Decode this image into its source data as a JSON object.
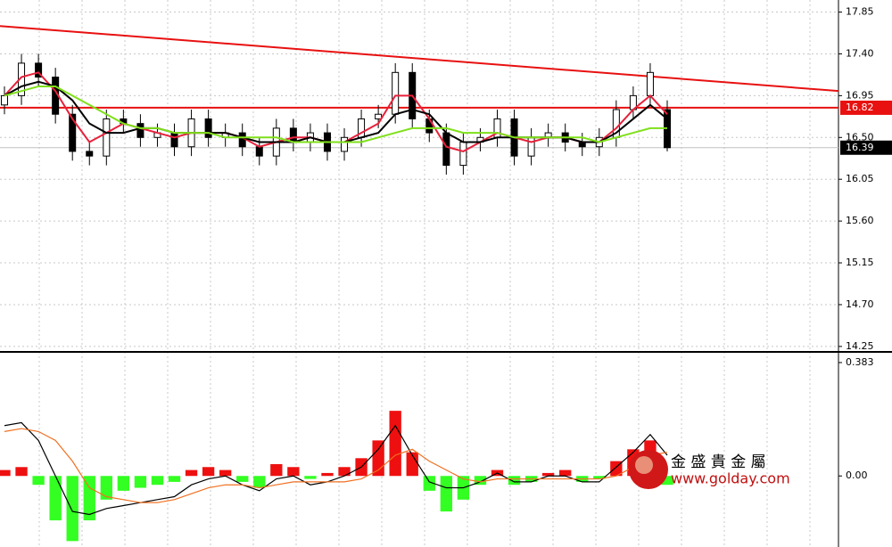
{
  "chart_data": [
    {
      "type": "candlestick",
      "open": [
        16.85,
        16.95,
        17.3,
        17.15,
        16.75,
        16.35,
        16.3,
        16.7,
        16.65,
        16.5,
        16.55,
        16.4,
        16.7,
        16.5,
        16.55,
        16.4,
        16.3,
        16.6,
        16.45,
        16.55,
        16.35,
        16.5,
        16.7,
        16.75,
        17.2,
        16.7,
        16.55,
        16.2,
        16.45,
        16.5,
        16.7,
        16.3,
        16.5,
        16.55,
        16.45,
        16.4,
        16.5,
        16.8,
        16.95,
        16.8
      ],
      "high": [
        17.05,
        17.4,
        17.4,
        17.25,
        16.85,
        16.45,
        16.8,
        16.8,
        16.75,
        16.65,
        16.65,
        16.8,
        16.8,
        16.65,
        16.65,
        16.5,
        16.7,
        16.7,
        16.65,
        16.65,
        16.6,
        16.8,
        16.85,
        17.3,
        17.3,
        16.8,
        16.65,
        16.55,
        16.6,
        16.8,
        16.8,
        16.6,
        16.65,
        16.65,
        16.55,
        16.6,
        16.9,
        17.05,
        17.3,
        16.9
      ],
      "low": [
        16.75,
        16.85,
        17.05,
        16.65,
        16.25,
        16.2,
        16.2,
        16.55,
        16.4,
        16.4,
        16.3,
        16.3,
        16.4,
        16.4,
        16.3,
        16.2,
        16.2,
        16.35,
        16.35,
        16.25,
        16.25,
        16.4,
        16.6,
        16.65,
        16.6,
        16.45,
        16.1,
        16.1,
        16.35,
        16.4,
        16.2,
        16.2,
        16.4,
        16.35,
        16.3,
        16.3,
        16.4,
        16.7,
        16.85,
        16.35
      ],
      "close": [
        16.95,
        17.3,
        17.15,
        16.75,
        16.35,
        16.3,
        16.7,
        16.65,
        16.5,
        16.55,
        16.4,
        16.7,
        16.5,
        16.55,
        16.4,
        16.3,
        16.6,
        16.45,
        16.55,
        16.35,
        16.5,
        16.7,
        16.75,
        17.2,
        16.7,
        16.55,
        16.2,
        16.45,
        16.5,
        16.7,
        16.3,
        16.5,
        16.55,
        16.45,
        16.4,
        16.5,
        16.8,
        16.95,
        17.2,
        16.39
      ],
      "series": [
        {
          "color": "#e8203a",
          "values": [
            16.95,
            17.15,
            17.2,
            17.0,
            16.7,
            16.45,
            16.55,
            16.65,
            16.6,
            16.55,
            16.5,
            16.55,
            16.55,
            16.55,
            16.5,
            16.4,
            16.45,
            16.5,
            16.5,
            16.45,
            16.45,
            16.55,
            16.65,
            16.95,
            16.95,
            16.7,
            16.4,
            16.35,
            16.45,
            16.55,
            16.5,
            16.45,
            16.5,
            16.5,
            16.45,
            16.45,
            16.6,
            16.8,
            16.95,
            16.75
          ]
        },
        {
          "color": "#000000",
          "values": [
            16.95,
            17.05,
            17.1,
            17.05,
            16.9,
            16.65,
            16.55,
            16.55,
            16.6,
            16.6,
            16.55,
            16.55,
            16.55,
            16.55,
            16.5,
            16.45,
            16.45,
            16.45,
            16.5,
            16.45,
            16.45,
            16.5,
            16.55,
            16.75,
            16.8,
            16.75,
            16.55,
            16.45,
            16.45,
            16.5,
            16.5,
            16.5,
            16.5,
            16.5,
            16.45,
            16.45,
            16.55,
            16.7,
            16.85,
            16.7
          ]
        },
        {
          "color": "#7fe01a",
          "values": [
            16.95,
            17.0,
            17.05,
            17.05,
            16.95,
            16.85,
            16.75,
            16.65,
            16.6,
            16.6,
            16.55,
            16.55,
            16.55,
            16.5,
            16.5,
            16.5,
            16.5,
            16.45,
            16.45,
            16.45,
            16.45,
            16.45,
            16.5,
            16.55,
            16.6,
            16.6,
            16.6,
            16.55,
            16.55,
            16.55,
            16.5,
            16.5,
            16.5,
            16.5,
            16.5,
            16.45,
            16.5,
            16.55,
            16.6,
            16.6
          ]
        }
      ],
      "trendline": {
        "start": 17.7,
        "end": 17.0,
        "color": "#e81010"
      },
      "hline": {
        "value": 16.82,
        "color": "#e81010"
      },
      "current_price": 16.39,
      "ylim": [
        14.22,
        17.98
      ],
      "yticks": [
        17.85,
        {
          "value": 17.4,
          "label": "17.40"
        },
        16.95,
        {
          "value": 16.5,
          "label": "16.50"
        },
        {
          "value": 16.05,
          "label": "16.05"
        },
        {
          "value": 15.6,
          "label": "15.60"
        },
        15.15,
        {
          "value": 14.7,
          "label": "14.70"
        },
        14.25
      ],
      "grid": true
    },
    {
      "type": "macd",
      "values": [
        0.02,
        0.03,
        -0.03,
        -0.15,
        -0.22,
        -0.15,
        -0.08,
        -0.05,
        -0.04,
        -0.03,
        -0.02,
        0.02,
        0.03,
        0.02,
        -0.02,
        -0.04,
        0.04,
        0.03,
        -0.01,
        0.01,
        0.03,
        0.06,
        0.12,
        0.22,
        0.08,
        -0.05,
        -0.12,
        -0.08,
        -0.03,
        0.02,
        -0.03,
        -0.02,
        0.01,
        0.02,
        -0.02,
        -0.01,
        0.05,
        0.09,
        0.12,
        -0.03
      ],
      "positive_color": "#ee1010",
      "negative_color": "#33ff22",
      "series": [
        {
          "color": "#000000",
          "values": [
            0.17,
            0.18,
            0.12,
            0.0,
            -0.12,
            -0.13,
            -0.11,
            -0.1,
            -0.09,
            -0.08,
            -0.07,
            -0.03,
            -0.01,
            0.0,
            -0.03,
            -0.05,
            -0.01,
            0.0,
            -0.03,
            -0.02,
            0.0,
            0.03,
            0.09,
            0.17,
            0.07,
            -0.02,
            -0.04,
            -0.04,
            -0.02,
            0.01,
            -0.02,
            -0.02,
            0.0,
            0.0,
            -0.02,
            -0.02,
            0.03,
            0.08,
            0.14,
            0.07
          ]
        },
        {
          "color": "#f07020",
          "values": [
            0.15,
            0.16,
            0.15,
            0.12,
            0.05,
            -0.04,
            -0.07,
            -0.08,
            -0.09,
            -0.09,
            -0.08,
            -0.06,
            -0.04,
            -0.03,
            -0.03,
            -0.04,
            -0.03,
            -0.02,
            -0.02,
            -0.02,
            -0.02,
            -0.01,
            0.02,
            0.07,
            0.09,
            0.05,
            0.02,
            -0.01,
            -0.02,
            -0.01,
            -0.01,
            -0.01,
            -0.01,
            -0.01,
            -0.01,
            -0.01,
            0.0,
            0.03,
            0.07,
            0.08
          ]
        }
      ],
      "ylim": [
        -0.24,
        0.41
      ],
      "yticks": [
        0.383,
        {
          "value": 0,
          "label": "0.00"
        }
      ],
      "watermark": {
        "title": "金 盛 貴 金 屬",
        "url": "www.golday.com"
      }
    }
  ]
}
